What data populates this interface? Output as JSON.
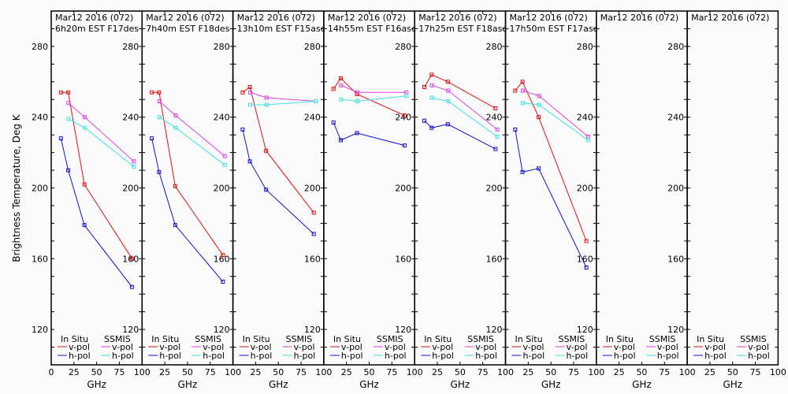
{
  "chart_data": {
    "type": "line",
    "ylabel": "Brightness Temperature, Deg K",
    "xlabel": "GHz",
    "ylim": [
      100,
      300
    ],
    "xlim": [
      0,
      100
    ],
    "yticks": [
      120,
      160,
      200,
      240,
      280
    ],
    "xticks": [
      0,
      25,
      50,
      75,
      100
    ],
    "xtick_labels": [
      "0",
      "25",
      "50",
      "75",
      "100"
    ],
    "legend": {
      "placement": "bottom",
      "in_situ_label": "In Situ",
      "ssmis_label": "SSMIS",
      "entries": [
        {
          "group": "In Situ",
          "name": "v-pol",
          "color": "#e01010"
        },
        {
          "group": "In Situ",
          "name": "h-pol",
          "color": "#1010d0"
        },
        {
          "group": "SSMIS",
          "name": "v-pol",
          "color": "#e040e0"
        },
        {
          "group": "SSMIS",
          "name": "h-pol",
          "color": "#40e0e0"
        }
      ]
    },
    "in_situ_freqs": [
      10.7,
      18.7,
      36.5,
      89
    ],
    "ssmis_freqs": [
      19,
      37,
      91
    ],
    "panels": [
      {
        "title": "Mar12 2016 (072)",
        "subtitle": "6h20m EST F17des",
        "series": [
          {
            "name": "In Situ v-pol",
            "color": "#e01010",
            "x": [
              10.7,
              18.7,
              36.5,
              89
            ],
            "y": [
              254,
              254,
              202,
              160
            ]
          },
          {
            "name": "In Situ h-pol",
            "color": "#1010d0",
            "x": [
              10.7,
              18.7,
              36.5,
              89
            ],
            "y": [
              228,
              210,
              179,
              144
            ]
          },
          {
            "name": "SSMIS v-pol",
            "color": "#e040e0",
            "x": [
              19,
              37,
              91
            ],
            "y": [
              248,
              240,
              215
            ]
          },
          {
            "name": "SSMIS h-pol",
            "color": "#40e0e0",
            "x": [
              19,
              37,
              91
            ],
            "y": [
              239,
              234,
              212
            ]
          }
        ]
      },
      {
        "title": "Mar12 2016 (072)",
        "subtitle": "7h40m EST F18des",
        "series": [
          {
            "name": "In Situ v-pol",
            "color": "#e01010",
            "x": [
              10.7,
              18.7,
              36.5,
              89
            ],
            "y": [
              254,
              254,
              201,
              162
            ]
          },
          {
            "name": "In Situ h-pol",
            "color": "#1010d0",
            "x": [
              10.7,
              18.7,
              36.5,
              89
            ],
            "y": [
              228,
              209,
              179,
              147
            ]
          },
          {
            "name": "SSMIS v-pol",
            "color": "#e040e0",
            "x": [
              19,
              37,
              91
            ],
            "y": [
              249,
              241,
              218
            ]
          },
          {
            "name": "SSMIS h-pol",
            "color": "#40e0e0",
            "x": [
              19,
              37,
              91
            ],
            "y": [
              240,
              234,
              213
            ]
          }
        ]
      },
      {
        "title": "Mar12 2016 (072)",
        "subtitle": "13h10m EST F15asc",
        "series": [
          {
            "name": "In Situ v-pol",
            "color": "#e01010",
            "x": [
              10.7,
              18.7,
              36.5,
              89
            ],
            "y": [
              254,
              257,
              221,
              186
            ]
          },
          {
            "name": "In Situ h-pol",
            "color": "#1010d0",
            "x": [
              10.7,
              18.7,
              36.5,
              89
            ],
            "y": [
              233,
              215,
              199,
              174
            ]
          },
          {
            "name": "SSMIS v-pol",
            "color": "#e040e0",
            "x": [
              19,
              37,
              91
            ],
            "y": [
              254,
              251,
              249
            ]
          },
          {
            "name": "SSMIS h-pol",
            "color": "#40e0e0",
            "x": [
              19,
              37,
              91
            ],
            "y": [
              247,
              247,
              249
            ]
          }
        ]
      },
      {
        "title": "Mar12 2016 (072)",
        "subtitle": "14h55m EST F16asc",
        "series": [
          {
            "name": "In Situ v-pol",
            "color": "#e01010",
            "x": [
              10.7,
              18.7,
              36.5,
              89
            ],
            "y": [
              256,
              262,
              253,
              241
            ]
          },
          {
            "name": "In Situ h-pol",
            "color": "#1010d0",
            "x": [
              10.7,
              18.7,
              36.5,
              89
            ],
            "y": [
              237,
              227,
              231,
              224
            ]
          },
          {
            "name": "SSMIS v-pol",
            "color": "#e040e0",
            "x": [
              19,
              37,
              91
            ],
            "y": [
              258,
              254,
              254
            ]
          },
          {
            "name": "SSMIS h-pol",
            "color": "#40e0e0",
            "x": [
              19,
              37,
              91
            ],
            "y": [
              250,
              249,
              252
            ]
          }
        ]
      },
      {
        "title": "Mar12 2016 (072)",
        "subtitle": "17h25m EST F18asc",
        "series": [
          {
            "name": "In Situ v-pol",
            "color": "#e01010",
            "x": [
              10.7,
              18.7,
              36.5,
              89
            ],
            "y": [
              257,
              264,
              260,
              245
            ]
          },
          {
            "name": "In Situ h-pol",
            "color": "#1010d0",
            "x": [
              10.7,
              18.7,
              36.5,
              89
            ],
            "y": [
              238,
              234,
              236,
              222
            ]
          },
          {
            "name": "SSMIS v-pol",
            "color": "#e040e0",
            "x": [
              19,
              37,
              91
            ],
            "y": [
              258,
              255,
              233
            ]
          },
          {
            "name": "SSMIS h-pol",
            "color": "#40e0e0",
            "x": [
              19,
              37,
              91
            ],
            "y": [
              251,
              249,
              229
            ]
          }
        ]
      },
      {
        "title": "Mar12 2016 (072)",
        "subtitle": "17h50m EST F17asc",
        "series": [
          {
            "name": "In Situ v-pol",
            "color": "#e01010",
            "x": [
              10.7,
              18.7,
              36.5,
              89
            ],
            "y": [
              255,
              260,
              240,
              170
            ]
          },
          {
            "name": "In Situ h-pol",
            "color": "#1010d0",
            "x": [
              10.7,
              18.7,
              36.5,
              89
            ],
            "y": [
              233,
              209,
              211,
              155
            ]
          },
          {
            "name": "SSMIS v-pol",
            "color": "#e040e0",
            "x": [
              19,
              37,
              91
            ],
            "y": [
              255,
              252,
              229
            ]
          },
          {
            "name": "SSMIS h-pol",
            "color": "#40e0e0",
            "x": [
              19,
              37,
              91
            ],
            "y": [
              248,
              247,
              227
            ]
          }
        ]
      },
      {
        "title": "Mar12 2016 (072)",
        "subtitle": "",
        "series": []
      },
      {
        "title": "Mar12 2016 (072)",
        "subtitle": "",
        "series": []
      }
    ]
  }
}
